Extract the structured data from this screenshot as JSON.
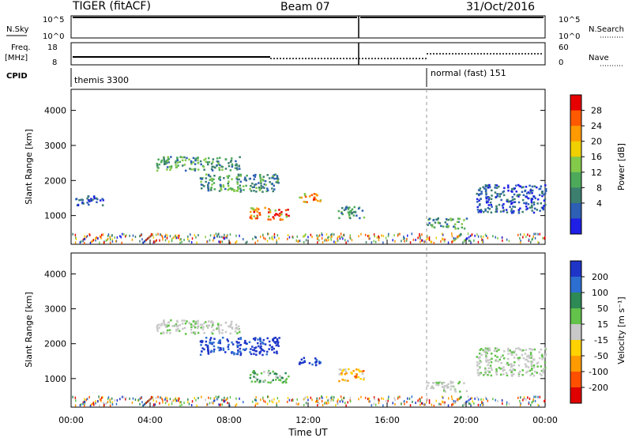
{
  "header": {
    "radar": "TIGER (fitACF)",
    "beam": "Beam 07",
    "date": "31/Oct/2016"
  },
  "summary": {
    "nsky_label": "N.Sky",
    "nsky_ticks": [
      "10^5",
      "10^0"
    ],
    "nsearch_label": "N.Search",
    "nsearch_ticks": [
      "10^5",
      "10^0"
    ],
    "freq_label_1": "Freq.",
    "freq_label_2": "[MHz]",
    "freq_ticks": [
      "18",
      "8"
    ],
    "nave_label": "Nave",
    "nave_ticks": [
      "60",
      "0"
    ],
    "cpid_label": "CPID",
    "cpid_segments": [
      {
        "name": "themis 3300",
        "start_h": 0,
        "end_h": 18
      },
      {
        "name": "normal (fast) 151",
        "start_h": 18,
        "end_h": 24
      }
    ]
  },
  "chart_data": [
    {
      "type": "heatmap",
      "name": "power",
      "ylabel": "Slant Range [km]",
      "ylim": [
        180,
        4600
      ],
      "yticks": [
        1000,
        2000,
        3000,
        4000
      ],
      "colorbar": {
        "label": "Power [dB]",
        "ticks": [
          "4",
          "8",
          "12",
          "16",
          "20",
          "24",
          "28"
        ],
        "colors": [
          "#1f1fe6",
          "#2d5fb5",
          "#3c7f6f",
          "#4caa5a",
          "#83c94a",
          "#f0d000",
          "#ff9a00",
          "#ff5a00",
          "#e60000"
        ]
      },
      "echo_regions": [
        {
          "t_start": 0.2,
          "t_end": 1.6,
          "r_low": 1300,
          "r_high": 1600,
          "level": "low"
        },
        {
          "t_start": 4.3,
          "t_end": 8.5,
          "r_low": 2300,
          "r_high": 2700,
          "level": "mid"
        },
        {
          "t_start": 6.5,
          "t_end": 10.5,
          "r_low": 1700,
          "r_high": 2200,
          "level": "mid"
        },
        {
          "t_start": 9.0,
          "t_end": 11.0,
          "r_low": 900,
          "r_high": 1250,
          "level": "high"
        },
        {
          "t_start": 11.5,
          "t_end": 12.6,
          "r_low": 1400,
          "r_high": 1650,
          "level": "high"
        },
        {
          "t_start": 13.5,
          "t_end": 14.8,
          "r_low": 950,
          "r_high": 1300,
          "level": "mid"
        },
        {
          "t_start": 18.0,
          "t_end": 20.0,
          "r_low": 650,
          "r_high": 950,
          "level": "mid"
        },
        {
          "t_start": 20.5,
          "t_end": 24.0,
          "r_low": 1100,
          "r_high": 1900,
          "level": "low"
        }
      ]
    },
    {
      "type": "heatmap",
      "name": "velocity",
      "xlabel": "Time UT",
      "xticks": [
        "00:00",
        "04:00",
        "08:00",
        "12:00",
        "16:00",
        "20:00",
        "00:00"
      ],
      "ylabel": "Slant Range [km]",
      "ylim": [
        180,
        4600
      ],
      "yticks": [
        1000,
        2000,
        3000,
        4000
      ],
      "colorbar": {
        "label": "Velocity [m s⁻¹]",
        "ticks": [
          "200",
          "100",
          "50",
          "15",
          "-15",
          "-50",
          "-100",
          "-200"
        ],
        "colors": [
          "#1e35c8",
          "#2d6fd0",
          "#2d8a55",
          "#62c24a",
          "#c8c8c8",
          "#ffd200",
          "#ff9b00",
          "#ff5000",
          "#e00000"
        ]
      },
      "echo_regions": [
        {
          "t_start": 4.3,
          "t_end": 8.5,
          "r_low": 2300,
          "r_high": 2700,
          "level": "gray"
        },
        {
          "t_start": 6.5,
          "t_end": 10.5,
          "r_low": 1700,
          "r_high": 2200,
          "level": "blue"
        },
        {
          "t_start": 9.0,
          "t_end": 11.0,
          "r_low": 900,
          "r_high": 1250,
          "level": "green"
        },
        {
          "t_start": 11.5,
          "t_end": 12.6,
          "r_low": 1400,
          "r_high": 1650,
          "level": "blue"
        },
        {
          "t_start": 13.5,
          "t_end": 14.8,
          "r_low": 950,
          "r_high": 1300,
          "level": "orange"
        },
        {
          "t_start": 18.0,
          "t_end": 20.0,
          "r_low": 650,
          "r_high": 950,
          "level": "gray"
        },
        {
          "t_start": 20.5,
          "t_end": 24.0,
          "r_low": 1100,
          "r_high": 1900,
          "level": "gray"
        }
      ]
    }
  ]
}
